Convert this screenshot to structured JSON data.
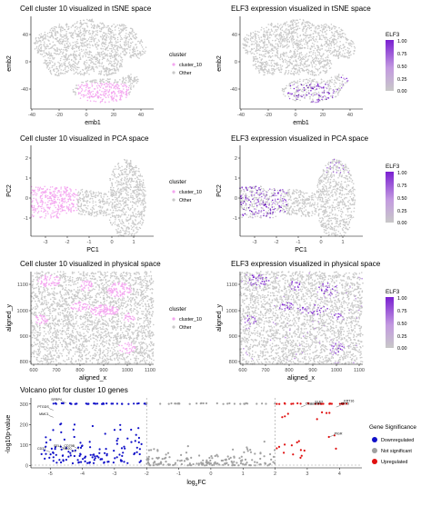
{
  "chart_data": [
    {
      "type": "scatter",
      "title": "Cell cluster 10 visualized in tSNE space",
      "xlabel": "emb1",
      "ylabel": "emb2",
      "xticks": [
        "-40",
        "-20",
        "0",
        "20",
        "40"
      ],
      "yticks": [
        "-40",
        "0",
        "40"
      ],
      "xlim": [
        -42,
        48
      ],
      "ylim": [
        -48,
        52
      ],
      "legend": {
        "title": "cluster",
        "entries": [
          "cluster_10",
          "Other"
        ]
      },
      "colors": {
        "cluster_10": "#f4a7f0",
        "Other": "#c8c8c8"
      },
      "series": [
        {
          "name": "Other",
          "region": "whole embedding"
        },
        {
          "name": "cluster_10",
          "region": "lower middle",
          "x_range": [
            -5,
            22
          ],
          "y_range": [
            -45,
            -22
          ]
        }
      ]
    },
    {
      "type": "scatter",
      "title": "ELF3 expression visualized in tSNE space",
      "xlabel": "emb1",
      "ylabel": "emb2",
      "xticks": [
        "-40",
        "-20",
        "0",
        "20",
        "40"
      ],
      "yticks": [
        "-40",
        "0",
        "40"
      ],
      "colorbar": {
        "title": "ELF3",
        "ticks": [
          "1.00",
          "0.75",
          "0.50",
          "0.25",
          "0.00"
        ],
        "low": "#c8c8c8",
        "high": "#7a1fd1"
      }
    },
    {
      "type": "scatter",
      "title": "Cell cluster 10 visualized in PCA space",
      "xlabel": "PC1",
      "ylabel": "PC2",
      "xticks": [
        "-3",
        "-2",
        "-1",
        "0",
        "1"
      ],
      "yticks": [
        "-1",
        "0",
        "1",
        "2"
      ],
      "xlim": [
        -3.7,
        1.75
      ],
      "ylim": [
        -1.8,
        2.6
      ],
      "legend": {
        "title": "cluster",
        "entries": [
          "cluster_10",
          "Other"
        ]
      },
      "colors": {
        "cluster_10": "#f4a7f0",
        "Other": "#c8c8c8"
      }
    },
    {
      "type": "scatter",
      "title": "ELF3 expression visualized in PCA space",
      "xlabel": "PC1",
      "ylabel": "PC2",
      "xticks": [
        "-3",
        "-2",
        "-1",
        "0",
        "1"
      ],
      "yticks": [
        "-1",
        "0",
        "1",
        "2"
      ],
      "colorbar": {
        "title": "ELF3",
        "ticks": [
          "1.00",
          "0.75",
          "0.50",
          "0.25",
          "0.00"
        ],
        "low": "#c8c8c8",
        "high": "#7a1fd1"
      }
    },
    {
      "type": "scatter",
      "title": "Cell cluster 10 visualized in physical space",
      "xlabel": "aligned_x",
      "ylabel": "aligned_y",
      "xticks": [
        "600",
        "700",
        "800",
        "900",
        "1000",
        "1100"
      ],
      "yticks": [
        "800",
        "900",
        "1000",
        "1100"
      ],
      "xlim": [
        590,
        1115
      ],
      "ylim": [
        790,
        1150
      ],
      "legend": {
        "title": "cluster",
        "entries": [
          "cluster_10",
          "Other"
        ]
      },
      "colors": {
        "cluster_10": "#f4a7f0",
        "Other": "#c8c8c8"
      }
    },
    {
      "type": "scatter",
      "title": "ELF3 expression visualized in physical space",
      "xlabel": "aligned_x",
      "ylabel": "aligned_y",
      "xticks": [
        "600",
        "700",
        "800",
        "900",
        "1000",
        "1100"
      ],
      "yticks": [
        "800",
        "900",
        "1000",
        "1100"
      ],
      "colorbar": {
        "title": "ELF3",
        "ticks": [
          "1.00",
          "0.75",
          "0.50",
          "0.25",
          "0.00"
        ],
        "low": "#c8c8c8",
        "high": "#7a1fd1"
      }
    },
    {
      "type": "scatter",
      "title": "Volcano plot for cluster 10 genes",
      "xlabel_main": "log",
      "xlabel_sub": "2",
      "xlabel_tail": "FC",
      "ylabel": "-log10p-value",
      "xticks": [
        "-5",
        "-4",
        "-3",
        "-2",
        "-1",
        "0",
        "1",
        "2",
        "3",
        "4"
      ],
      "yticks": [
        "0",
        "100",
        "200",
        "300"
      ],
      "xlim": [
        -5.6,
        4.7
      ],
      "ylim": [
        -12,
        330
      ],
      "thresholds": {
        "x": [
          -2,
          2
        ],
        "y": 1.3
      },
      "legend": {
        "title": "Gene Significance",
        "entries": [
          "Downregulated",
          "Not significant",
          "Upregulated"
        ]
      },
      "colors": {
        "Downregulated": "#1010c8",
        "Not significant": "#a0a0a0",
        "Upregulated": "#e01010"
      },
      "labeled_genes": [
        {
          "name": "SFRP4",
          "x": -4.5,
          "y": 305
        },
        {
          "name": "PTGDS",
          "x": -4.9,
          "y": 270
        },
        {
          "name": "MMC1",
          "x": -4.9,
          "y": 235
        },
        {
          "name": "SELL",
          "x": -4.5,
          "y": 80
        },
        {
          "name": "CD79B",
          "x": -4.1,
          "y": 80
        },
        {
          "name": "CD37",
          "x": -5.0,
          "y": 65
        },
        {
          "name": "CD20",
          "x": -4.2,
          "y": 65
        },
        {
          "name": "ELF3",
          "x": 3.1,
          "y": 295
        },
        {
          "name": "CEACAM6",
          "x": 2.8,
          "y": 285
        },
        {
          "name": "KRT16",
          "x": 4.0,
          "y": 300
        },
        {
          "name": "KRT5",
          "x": 3.9,
          "y": 285
        },
        {
          "name": "PIGR",
          "x": 3.7,
          "y": 140
        }
      ]
    }
  ]
}
